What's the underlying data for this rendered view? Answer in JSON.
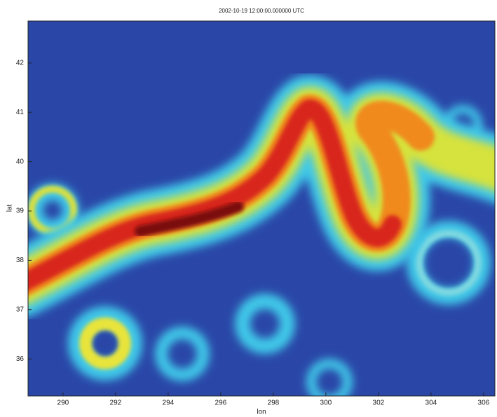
{
  "chart_data": {
    "type": "heatmap",
    "title": "2002-10-19 12:00:00.000000 UTC",
    "x_label": "lon",
    "y_label": "lat",
    "xlim": [
      288.67,
      306.43
    ],
    "ylim": [
      35.25,
      42.85
    ],
    "xticks": [
      290,
      292,
      294,
      296,
      298,
      300,
      302,
      304,
      306
    ],
    "yticks": [
      36,
      37,
      38,
      39,
      40,
      41,
      42
    ]
  }
}
